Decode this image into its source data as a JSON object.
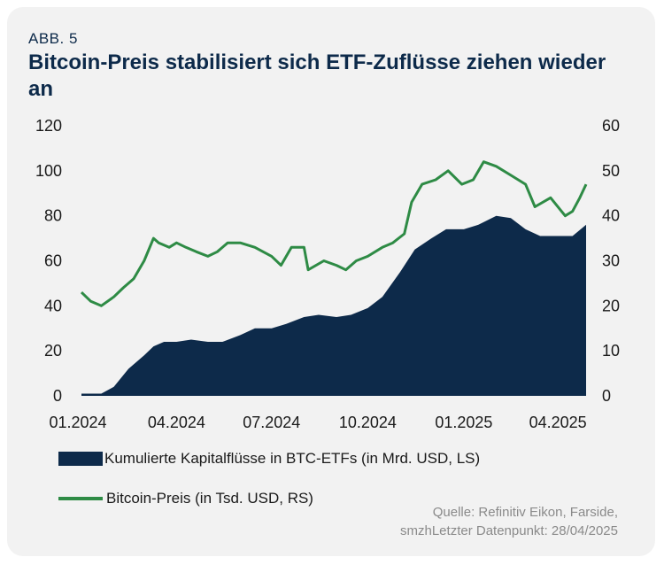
{
  "header": {
    "label": "ABB. 5",
    "title": "Bitcoin-Preis stabilisiert sich ETF-Zuflüsse ziehen wieder an"
  },
  "chart_data": {
    "type": "area",
    "x_ticks": [
      "01.2024",
      "04.2024",
      "07.2024",
      "10.2024",
      "01.2025",
      "04.2025"
    ],
    "y_left": {
      "ticks": [
        "0",
        "20",
        "40",
        "60",
        "80",
        "100",
        "120"
      ],
      "ylim": [
        0,
        120
      ]
    },
    "y_right": {
      "ticks": [
        "0",
        "10",
        "20",
        "30",
        "40",
        "50",
        "60"
      ],
      "ylim": [
        0,
        60
      ]
    },
    "grid": false,
    "legend_position": "bottom",
    "series": [
      {
        "name": "Kumulierte Kapitalflüsse in BTC-ETFs (in Mrd. USD, LS)",
        "type": "area",
        "axis": "left",
        "color": "#0d2a4a",
        "x": [
          "2024-01-01",
          "2024-01-20",
          "2024-02-01",
          "2024-02-15",
          "2024-03-01",
          "2024-03-10",
          "2024-03-20",
          "2024-04-01",
          "2024-04-15",
          "2024-05-01",
          "2024-05-15",
          "2024-06-01",
          "2024-06-15",
          "2024-07-01",
          "2024-07-15",
          "2024-08-01",
          "2024-08-15",
          "2024-09-01",
          "2024-09-15",
          "2024-10-01",
          "2024-10-15",
          "2024-11-01",
          "2024-11-15",
          "2024-12-01",
          "2024-12-15",
          "2025-01-01",
          "2025-01-15",
          "2025-02-01",
          "2025-02-15",
          "2025-03-01",
          "2025-03-15",
          "2025-04-01",
          "2025-04-15",
          "2025-04-28"
        ],
        "values": [
          1,
          1,
          4,
          12,
          18,
          22,
          24,
          24,
          25,
          24,
          24,
          27,
          30,
          30,
          32,
          35,
          36,
          35,
          36,
          39,
          44,
          55,
          65,
          70,
          74,
          74,
          76,
          80,
          79,
          74,
          71,
          71,
          71,
          76
        ]
      },
      {
        "name": "Bitcoin-Preis (in Tsd. USD, RS)",
        "type": "line",
        "axis": "right",
        "color": "#2e8b45",
        "x": [
          "2024-01-01",
          "2024-01-10",
          "2024-01-20",
          "2024-02-01",
          "2024-02-10",
          "2024-02-20",
          "2024-03-01",
          "2024-03-10",
          "2024-03-15",
          "2024-03-25",
          "2024-04-01",
          "2024-04-10",
          "2024-04-20",
          "2024-05-01",
          "2024-05-10",
          "2024-05-20",
          "2024-06-01",
          "2024-06-15",
          "2024-07-01",
          "2024-07-10",
          "2024-07-20",
          "2024-08-01",
          "2024-08-05",
          "2024-08-20",
          "2024-09-01",
          "2024-09-10",
          "2024-09-20",
          "2024-10-01",
          "2024-10-15",
          "2024-10-25",
          "2024-11-05",
          "2024-11-12",
          "2024-11-22",
          "2024-12-05",
          "2024-12-17",
          "2024-12-30",
          "2025-01-10",
          "2025-01-20",
          "2025-02-01",
          "2025-02-15",
          "2025-03-01",
          "2025-03-10",
          "2025-03-25",
          "2025-04-08",
          "2025-04-15",
          "2025-04-22",
          "2025-04-28"
        ],
        "values": [
          23,
          21,
          20,
          22,
          24,
          26,
          30,
          35,
          34,
          33,
          34,
          33,
          32,
          31,
          32,
          34,
          34,
          33,
          31,
          29,
          33,
          33,
          28,
          30,
          29,
          28,
          30,
          31,
          33,
          34,
          36,
          43,
          47,
          48,
          50,
          47,
          48,
          52,
          51,
          49,
          47,
          42,
          44,
          40,
          41,
          44,
          47
        ]
      }
    ]
  },
  "source": {
    "line1": "Quelle: Refinitiv Eikon, Farside,",
    "line2": "smzhLetzter Datenpunkt: 28/04/2025"
  }
}
